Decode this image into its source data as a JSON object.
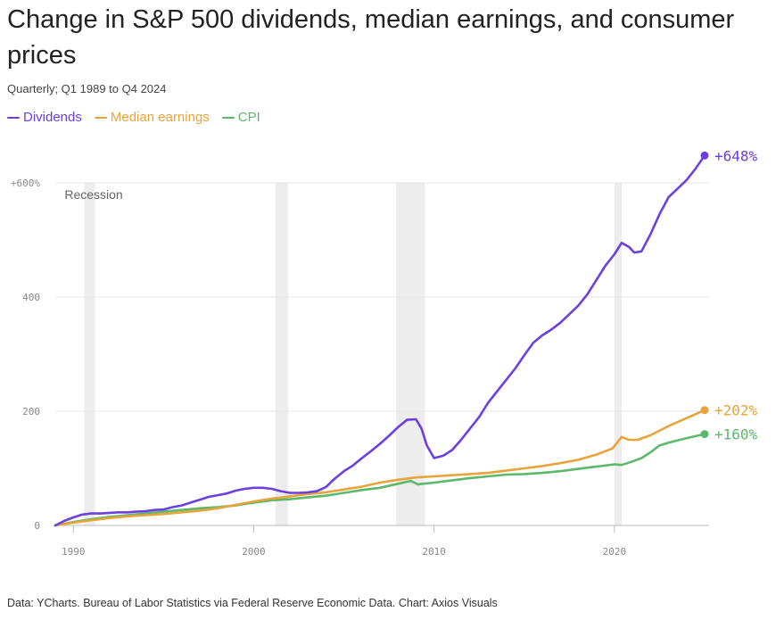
{
  "chart_data": {
    "type": "line",
    "title": "Change in S&P 500 dividends, median earnings, and consumer prices",
    "subtitle": "Quarterly; Q1 1989 to Q4 2024",
    "source": "Data: YCharts. Bureau of Labor Statistics via Federal Reserve Economic Data. Chart: Axios Visuals",
    "x_range": [
      1989,
      2025
    ],
    "y_range": [
      0,
      648
    ],
    "x_ticks": [
      1990,
      2000,
      2010,
      2020
    ],
    "y_ticks": [
      {
        "value": 0,
        "label": "0"
      },
      {
        "value": 200,
        "label": "200"
      },
      {
        "value": 400,
        "label": "400"
      },
      {
        "value": 600,
        "label": "+600%"
      }
    ],
    "grid": true,
    "recession_label": "Recession",
    "recessions": [
      [
        1990.6,
        1991.2
      ],
      [
        2001.2,
        2001.9
      ],
      [
        2007.9,
        2009.5
      ],
      [
        2020.0,
        2020.4
      ]
    ],
    "series": [
      {
        "name": "Dividends",
        "color": "#6b3fe0",
        "end_label": "+648%",
        "points": [
          [
            1989.0,
            0
          ],
          [
            1989.5,
            8
          ],
          [
            1990.0,
            14
          ],
          [
            1990.5,
            19
          ],
          [
            1991.0,
            21
          ],
          [
            1991.5,
            21
          ],
          [
            1992.0,
            22
          ],
          [
            1992.5,
            23
          ],
          [
            1993.0,
            23
          ],
          [
            1993.5,
            24
          ],
          [
            1994.0,
            25
          ],
          [
            1994.5,
            27
          ],
          [
            1995.0,
            28
          ],
          [
            1995.5,
            32
          ],
          [
            1996.0,
            35
          ],
          [
            1996.5,
            40
          ],
          [
            1997.0,
            45
          ],
          [
            1997.5,
            50
          ],
          [
            1998.0,
            53
          ],
          [
            1998.5,
            56
          ],
          [
            1999.0,
            61
          ],
          [
            1999.5,
            64
          ],
          [
            2000.0,
            66
          ],
          [
            2000.5,
            66
          ],
          [
            2001.0,
            64
          ],
          [
            2001.5,
            60
          ],
          [
            2002.0,
            57
          ],
          [
            2002.5,
            57
          ],
          [
            2003.0,
            58
          ],
          [
            2003.5,
            60
          ],
          [
            2004.0,
            67
          ],
          [
            2004.5,
            82
          ],
          [
            2005.0,
            95
          ],
          [
            2005.5,
            105
          ],
          [
            2006.0,
            118
          ],
          [
            2006.5,
            130
          ],
          [
            2007.0,
            143
          ],
          [
            2007.5,
            157
          ],
          [
            2008.0,
            172
          ],
          [
            2008.5,
            185
          ],
          [
            2009.0,
            186
          ],
          [
            2009.3,
            170
          ],
          [
            2009.6,
            140
          ],
          [
            2010.0,
            118
          ],
          [
            2010.5,
            122
          ],
          [
            2011.0,
            132
          ],
          [
            2011.5,
            150
          ],
          [
            2012.0,
            170
          ],
          [
            2012.5,
            190
          ],
          [
            2013.0,
            215
          ],
          [
            2013.5,
            235
          ],
          [
            2014.0,
            255
          ],
          [
            2014.5,
            275
          ],
          [
            2015.0,
            298
          ],
          [
            2015.5,
            320
          ],
          [
            2016.0,
            333
          ],
          [
            2016.5,
            343
          ],
          [
            2017.0,
            355
          ],
          [
            2017.5,
            370
          ],
          [
            2018.0,
            385
          ],
          [
            2018.5,
            405
          ],
          [
            2019.0,
            430
          ],
          [
            2019.5,
            455
          ],
          [
            2020.0,
            475
          ],
          [
            2020.4,
            495
          ],
          [
            2020.8,
            488
          ],
          [
            2021.1,
            478
          ],
          [
            2021.5,
            480
          ],
          [
            2022.0,
            510
          ],
          [
            2022.5,
            545
          ],
          [
            2023.0,
            575
          ],
          [
            2023.5,
            590
          ],
          [
            2024.0,
            605
          ],
          [
            2024.5,
            625
          ],
          [
            2025.0,
            648
          ]
        ]
      },
      {
        "name": "Median earnings",
        "color": "#e8a43a",
        "end_label": "+202%",
        "points": [
          [
            1989.0,
            0
          ],
          [
            1990.0,
            5
          ],
          [
            1991.0,
            9
          ],
          [
            1992.0,
            13
          ],
          [
            1993.0,
            16
          ],
          [
            1994.0,
            18
          ],
          [
            1995.0,
            20
          ],
          [
            1996.0,
            23
          ],
          [
            1997.0,
            26
          ],
          [
            1998.0,
            30
          ],
          [
            1999.0,
            36
          ],
          [
            2000.0,
            42
          ],
          [
            2001.0,
            47
          ],
          [
            2002.0,
            51
          ],
          [
            2003.0,
            55
          ],
          [
            2004.0,
            58
          ],
          [
            2005.0,
            63
          ],
          [
            2006.0,
            68
          ],
          [
            2007.0,
            75
          ],
          [
            2008.0,
            80
          ],
          [
            2009.0,
            84
          ],
          [
            2010.0,
            86
          ],
          [
            2011.0,
            88
          ],
          [
            2012.0,
            90
          ],
          [
            2013.0,
            92
          ],
          [
            2014.0,
            96
          ],
          [
            2015.0,
            100
          ],
          [
            2016.0,
            104
          ],
          [
            2017.0,
            109
          ],
          [
            2018.0,
            115
          ],
          [
            2019.0,
            124
          ],
          [
            2019.9,
            135
          ],
          [
            2020.4,
            155
          ],
          [
            2020.8,
            150
          ],
          [
            2021.3,
            150
          ],
          [
            2022.0,
            158
          ],
          [
            2023.0,
            174
          ],
          [
            2024.0,
            188
          ],
          [
            2025.0,
            202
          ]
        ]
      },
      {
        "name": "CPI",
        "color": "#5cb86a",
        "end_label": "+160%",
        "points": [
          [
            1989.0,
            0
          ],
          [
            1990.0,
            6
          ],
          [
            1991.0,
            11
          ],
          [
            1992.0,
            15
          ],
          [
            1993.0,
            18
          ],
          [
            1994.0,
            21
          ],
          [
            1995.0,
            24
          ],
          [
            1996.0,
            27
          ],
          [
            1997.0,
            30
          ],
          [
            1998.0,
            32
          ],
          [
            1999.0,
            35
          ],
          [
            2000.0,
            40
          ],
          [
            2001.0,
            44
          ],
          [
            2002.0,
            46
          ],
          [
            2003.0,
            49
          ],
          [
            2004.0,
            52
          ],
          [
            2005.0,
            57
          ],
          [
            2006.0,
            62
          ],
          [
            2007.0,
            66
          ],
          [
            2008.0,
            73
          ],
          [
            2008.7,
            78
          ],
          [
            2009.1,
            72
          ],
          [
            2010.0,
            75
          ],
          [
            2011.0,
            79
          ],
          [
            2012.0,
            83
          ],
          [
            2013.0,
            86
          ],
          [
            2014.0,
            89
          ],
          [
            2015.0,
            90
          ],
          [
            2016.0,
            92
          ],
          [
            2017.0,
            95
          ],
          [
            2018.0,
            99
          ],
          [
            2019.0,
            103
          ],
          [
            2020.0,
            107
          ],
          [
            2020.4,
            106
          ],
          [
            2021.0,
            112
          ],
          [
            2021.5,
            118
          ],
          [
            2022.0,
            128
          ],
          [
            2022.5,
            140
          ],
          [
            2023.0,
            145
          ],
          [
            2024.0,
            153
          ],
          [
            2025.0,
            160
          ]
        ]
      }
    ]
  }
}
